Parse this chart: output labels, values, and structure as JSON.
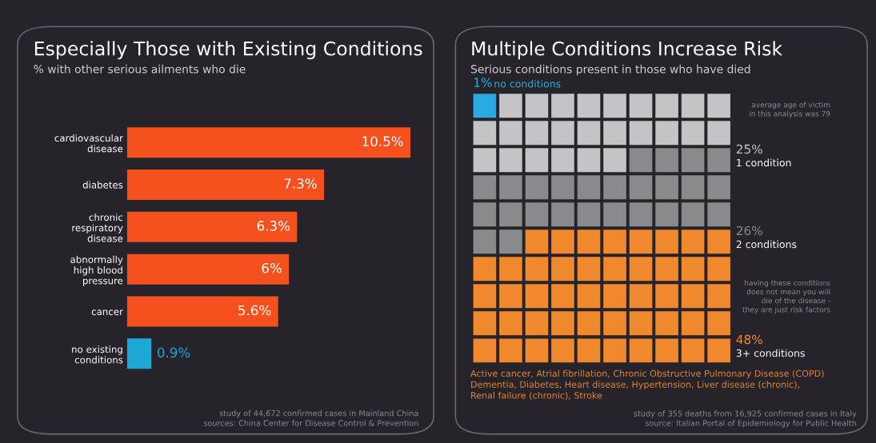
{
  "chart_data": [
    {
      "type": "bar",
      "orientation": "horizontal",
      "title": "Especially Those with Existing Conditions",
      "subtitle": "% with other serious ailments who die",
      "categories": [
        "cardiovascular\ndisease",
        "diabetes",
        "chronic\nrespiratory\ndisease",
        "abnormally\nhigh blood\npressure",
        "cancer",
        "no existing\nconditions"
      ],
      "values": [
        10.5,
        7.3,
        6.3,
        6,
        5.6,
        0.9
      ],
      "value_labels": [
        "10.5%",
        "7.3%",
        "6.3%",
        "6%",
        "5.6%",
        "0.9%"
      ],
      "colors": [
        "#f4511e",
        "#f4511e",
        "#f4511e",
        "#f4511e",
        "#f4511e",
        "#1ea8d8"
      ],
      "tick_labels": "y",
      "annotations": [
        "study of 44,672 confirmed cases in Mainland China",
        "sources: China Center for Disease Control & Prevention"
      ]
    },
    {
      "type": "other",
      "title": "Multiple Conditions Increase Risk",
      "subtitle": "Serious conditions present in those who have died",
      "categories": [
        "no conditions",
        "1 condition",
        "2 conditions",
        "3+ conditions"
      ],
      "values": [
        1,
        25,
        26,
        48
      ],
      "value_labels": [
        "1%",
        "25%",
        "26%",
        "48%"
      ],
      "colors": [
        "#29abe2",
        "#c4c4c6",
        "#8a8a8c",
        "#f0892d"
      ],
      "annotations": [
        "average age of victim\nin this analysis was 79",
        "having these conditions\ndoes not mean you will\ndie of the disease -\nthey are just risk factors",
        "Active cancer, Atrial fibrillation, Chronic Obstructive Pulmonary Disease (COPD)\nDementia, Diabetes, Heart disease, Hypertension, Liver disease (chronic),\nRenal failure (chronic), Stroke",
        "study of 355 deaths from 16,925 confirmed cases in Italy\nsource: Italian Portal of Epidemiology for Public Health"
      ]
    }
  ]
}
